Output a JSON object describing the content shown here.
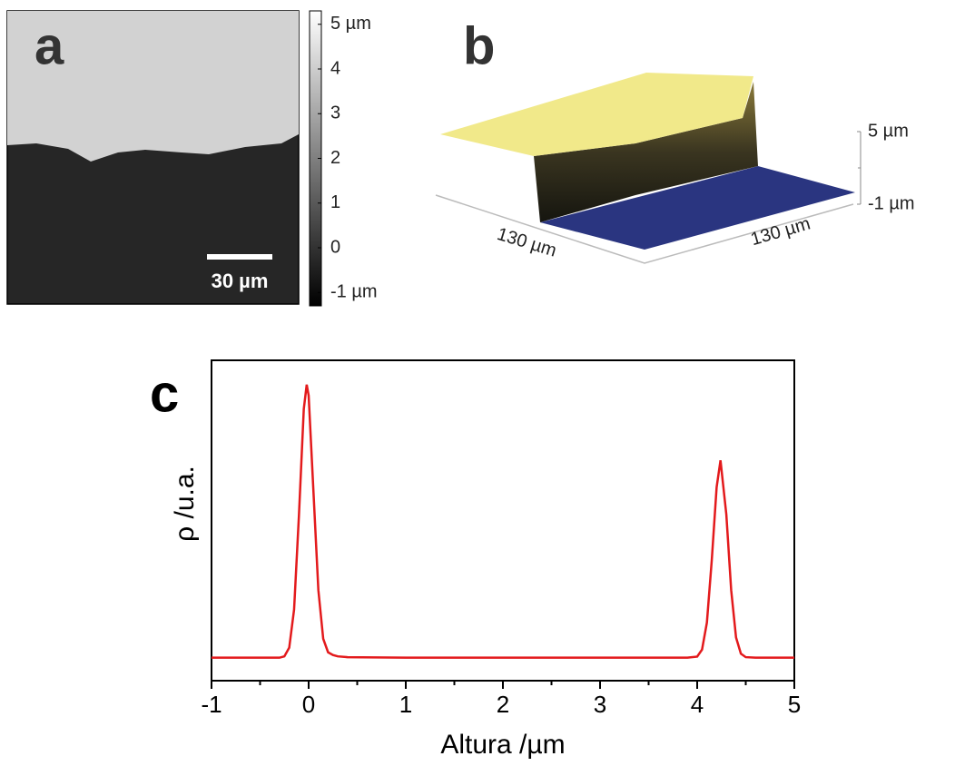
{
  "chart_data": [
    {
      "type": "image",
      "panel_label": "a",
      "scalebar_label": "30 µm",
      "clim": [
        -1.3,
        5.3
      ],
      "colorbar_ticks": [
        {
          "value": 5,
          "label": "5 µm"
        },
        4,
        3,
        2,
        1,
        0,
        {
          "value": -1,
          "label": "-1 µm"
        }
      ]
    },
    {
      "type": "surface",
      "panel_label": "b",
      "x_label": "130 µm",
      "y_label": "130 µm",
      "zlim": [
        -1,
        5
      ],
      "zticks": [
        {
          "value": 5,
          "label": "5 µm"
        },
        {
          "value": -1,
          "label": "-1 µm"
        }
      ],
      "zminorticks": [
        2
      ]
    },
    {
      "type": "line",
      "panel_label": "c",
      "xlabel": "Altura /µm",
      "ylabel": "ρ /u.a.",
      "color": "#e31a1c",
      "xlim": [
        -1,
        5
      ],
      "xticks": [
        -1,
        0,
        1,
        2,
        3,
        4,
        5
      ],
      "xminorticks": [
        -0.5,
        0.5,
        1.5,
        2.5,
        3.5,
        4.5
      ],
      "ylim": [
        -0.085,
        1.1
      ],
      "x": [
        -1,
        -0.5,
        -0.3,
        -0.25,
        -0.2,
        -0.15,
        -0.1,
        -0.05,
        -0.02,
        0,
        0.05,
        0.1,
        0.15,
        0.2,
        0.25,
        0.3,
        0.4,
        1,
        2,
        3,
        3.9,
        4.0,
        4.05,
        4.1,
        4.15,
        4.2,
        4.24,
        4.3,
        4.35,
        4.4,
        4.45,
        4.5,
        4.6,
        5
      ],
      "values": [
        0,
        0,
        0,
        0.005,
        0.037,
        0.178,
        0.526,
        0.92,
        1.01,
        0.97,
        0.61,
        0.25,
        0.07,
        0.02,
        0.01,
        0.005,
        0.002,
        0,
        0,
        0,
        0,
        0.004,
        0.03,
        0.13,
        0.36,
        0.63,
        0.73,
        0.53,
        0.25,
        0.075,
        0.015,
        0.002,
        0,
        0
      ]
    }
  ]
}
